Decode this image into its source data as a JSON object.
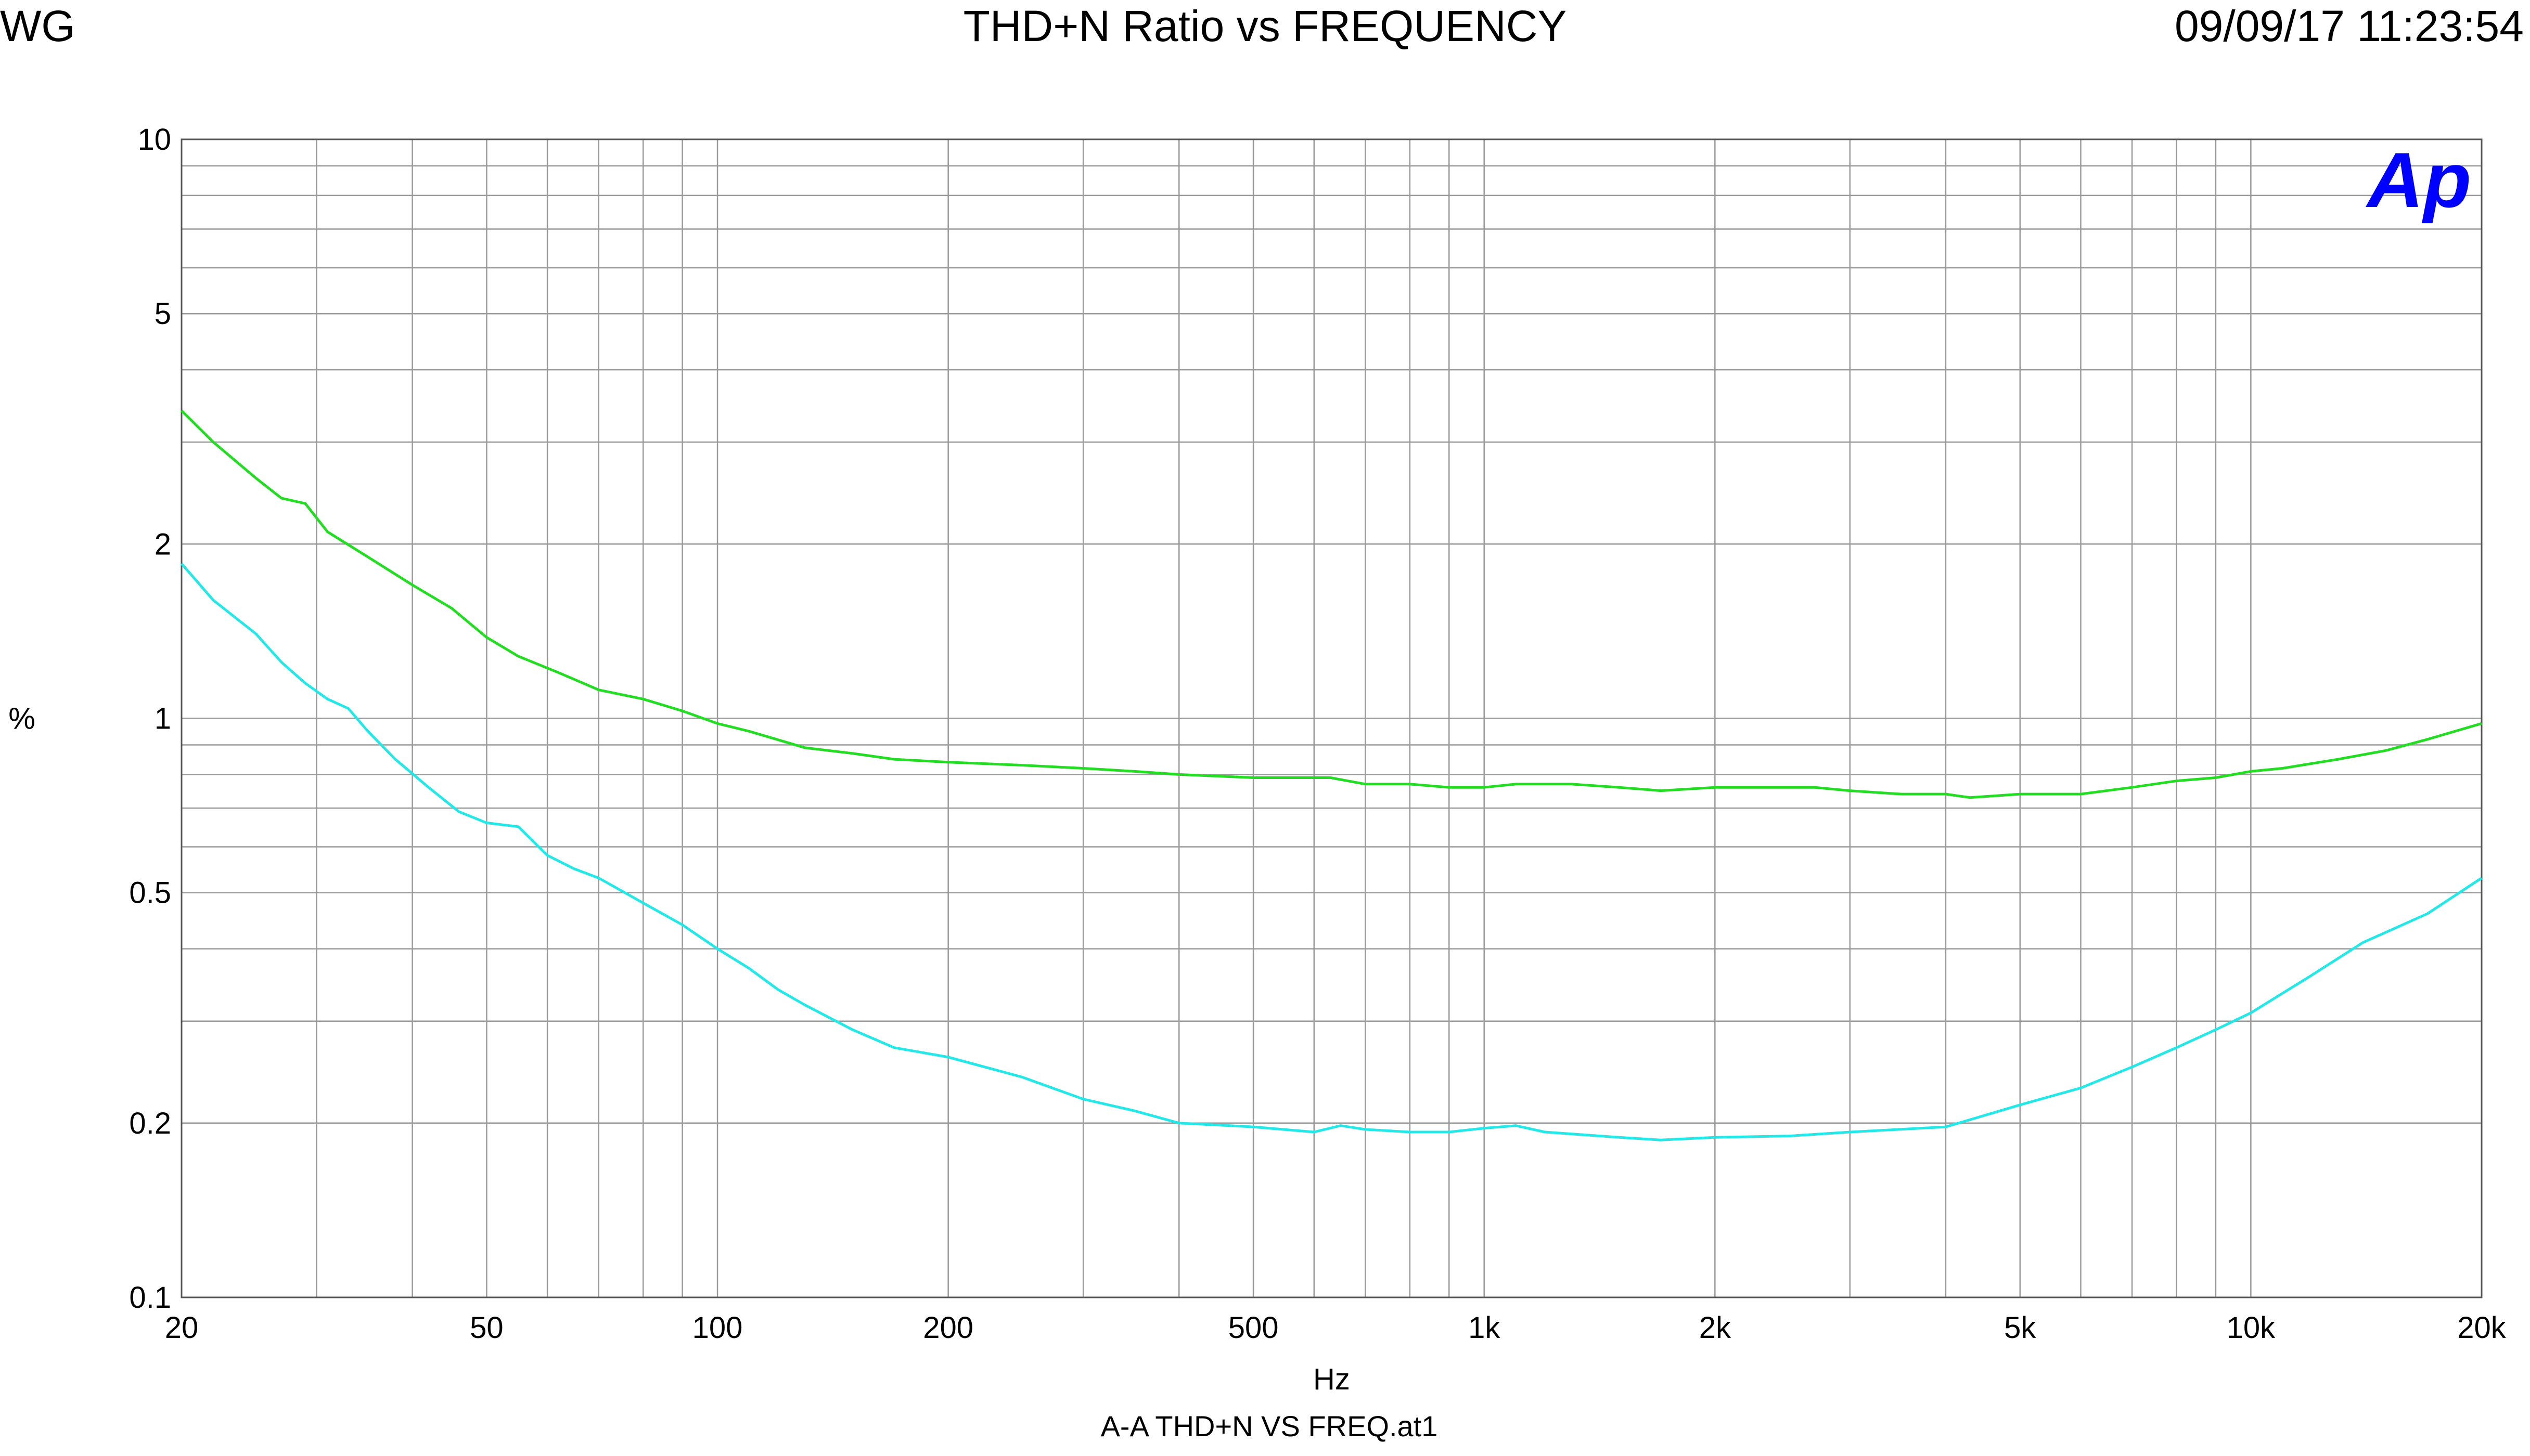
{
  "header": {
    "left": "WG",
    "title": "THD+N Ratio vs FREQUENCY",
    "timestamp": "09/09/17 11:23:54"
  },
  "footer": {
    "file": "A-A THD+N VS FREQ.at1"
  },
  "logo": {
    "text": "Ap",
    "color": "#0000ff"
  },
  "chart_data": {
    "type": "line",
    "title": "THD+N Ratio vs FREQUENCY",
    "xlabel": "Hz",
    "ylabel": "%",
    "xscale": "log",
    "yscale": "log",
    "xlim": [
      20,
      20000
    ],
    "ylim": [
      0.1,
      10
    ],
    "grid": true,
    "x_tick_labels": [
      {
        "value": 20,
        "label": "20"
      },
      {
        "value": 50,
        "label": "50"
      },
      {
        "value": 100,
        "label": "100"
      },
      {
        "value": 200,
        "label": "200"
      },
      {
        "value": 500,
        "label": "500"
      },
      {
        "value": 1000,
        "label": "1k"
      },
      {
        "value": 2000,
        "label": "2k"
      },
      {
        "value": 5000,
        "label": "5k"
      },
      {
        "value": 10000,
        "label": "10k"
      },
      {
        "value": 20000,
        "label": "20k"
      }
    ],
    "y_tick_labels": [
      {
        "value": 0.1,
        "label": "0.1"
      },
      {
        "value": 0.2,
        "label": "0.2"
      },
      {
        "value": 0.5,
        "label": "0.5"
      },
      {
        "value": 1,
        "label": "1"
      },
      {
        "value": 2,
        "label": "2"
      },
      {
        "value": 5,
        "label": "5"
      },
      {
        "value": 10,
        "label": "10"
      }
    ],
    "series": [
      {
        "color": "#22dd22",
        "x": [
          20,
          22,
          25,
          27,
          29,
          31,
          35,
          40,
          45,
          50,
          55,
          62,
          70,
          80,
          90,
          100,
          110,
          130,
          150,
          170,
          200,
          250,
          300,
          350,
          400,
          500,
          550,
          630,
          700,
          800,
          900,
          1000,
          1100,
          1300,
          1500,
          1700,
          2000,
          2300,
          2700,
          3000,
          3500,
          4000,
          4300,
          5000,
          6000,
          7000,
          8000,
          9000,
          10000,
          11000,
          13000,
          15000,
          17000,
          20000
        ],
        "values": [
          3.4,
          3.0,
          2.6,
          2.4,
          2.35,
          2.1,
          1.9,
          1.7,
          1.55,
          1.38,
          1.28,
          1.2,
          1.12,
          1.08,
          1.03,
          0.98,
          0.95,
          0.89,
          0.87,
          0.85,
          0.84,
          0.83,
          0.82,
          0.81,
          0.8,
          0.79,
          0.79,
          0.79,
          0.77,
          0.77,
          0.76,
          0.76,
          0.77,
          0.77,
          0.76,
          0.75,
          0.76,
          0.76,
          0.76,
          0.75,
          0.74,
          0.74,
          0.73,
          0.74,
          0.74,
          0.76,
          0.78,
          0.79,
          0.81,
          0.82,
          0.85,
          0.88,
          0.92,
          0.98
        ]
      },
      {
        "color": "#22e8e8",
        "x": [
          20,
          22,
          25,
          27,
          29,
          31,
          33,
          35,
          38,
          42,
          46,
          50,
          55,
          60,
          65,
          70,
          80,
          90,
          100,
          110,
          120,
          130,
          150,
          170,
          200,
          250,
          300,
          350,
          400,
          500,
          600,
          650,
          700,
          800,
          900,
          1000,
          1100,
          1200,
          1500,
          1700,
          2000,
          2500,
          3000,
          4000,
          5000,
          6000,
          7000,
          8000,
          9000,
          10000,
          12000,
          14000,
          17000,
          20000
        ],
        "values": [
          1.85,
          1.6,
          1.4,
          1.25,
          1.15,
          1.08,
          1.04,
          0.95,
          0.85,
          0.76,
          0.69,
          0.66,
          0.65,
          0.58,
          0.55,
          0.53,
          0.48,
          0.44,
          0.4,
          0.37,
          0.34,
          0.32,
          0.29,
          0.27,
          0.26,
          0.24,
          0.22,
          0.21,
          0.2,
          0.197,
          0.193,
          0.198,
          0.195,
          0.193,
          0.193,
          0.196,
          0.198,
          0.193,
          0.189,
          0.187,
          0.189,
          0.19,
          0.193,
          0.197,
          0.215,
          0.23,
          0.25,
          0.27,
          0.29,
          0.31,
          0.36,
          0.41,
          0.46,
          0.53
        ]
      }
    ]
  }
}
